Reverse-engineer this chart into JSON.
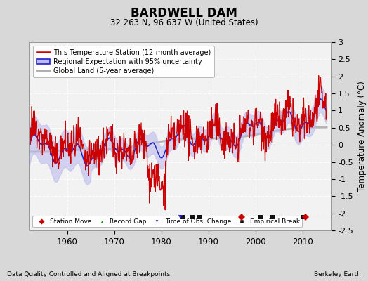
{
  "title": "BARDWELL DAM",
  "subtitle": "32.263 N, 96.637 W (United States)",
  "ylabel": "Temperature Anomaly (°C)",
  "footer_left": "Data Quality Controlled and Aligned at Breakpoints",
  "footer_right": "Berkeley Earth",
  "ylim": [
    -2.5,
    3.0
  ],
  "xlim": [
    1952,
    2016
  ],
  "yticks": [
    -2.5,
    -2,
    -1.5,
    -1,
    -0.5,
    0,
    0.5,
    1,
    1.5,
    2,
    2.5,
    3
  ],
  "xticks": [
    1960,
    1970,
    1980,
    1990,
    2000,
    2010
  ],
  "bg_color": "#d8d8d8",
  "plot_bg_color": "#f2f2f2",
  "grid_color": "#ffffff",
  "red_color": "#cc0000",
  "blue_color": "#2222cc",
  "blue_fill_color": "#bbbbee",
  "gray_color": "#aaaaaa",
  "empirical_breaks": [
    1984.5,
    1986.5,
    1988.0,
    2001.0,
    2003.5,
    2010.0
  ],
  "station_moves": [
    1997.0,
    2010.5
  ],
  "obs_changes": [
    1984.0
  ],
  "random_seed": 42,
  "n_points": 756,
  "start_year": 1952.0,
  "end_year": 2015.0
}
